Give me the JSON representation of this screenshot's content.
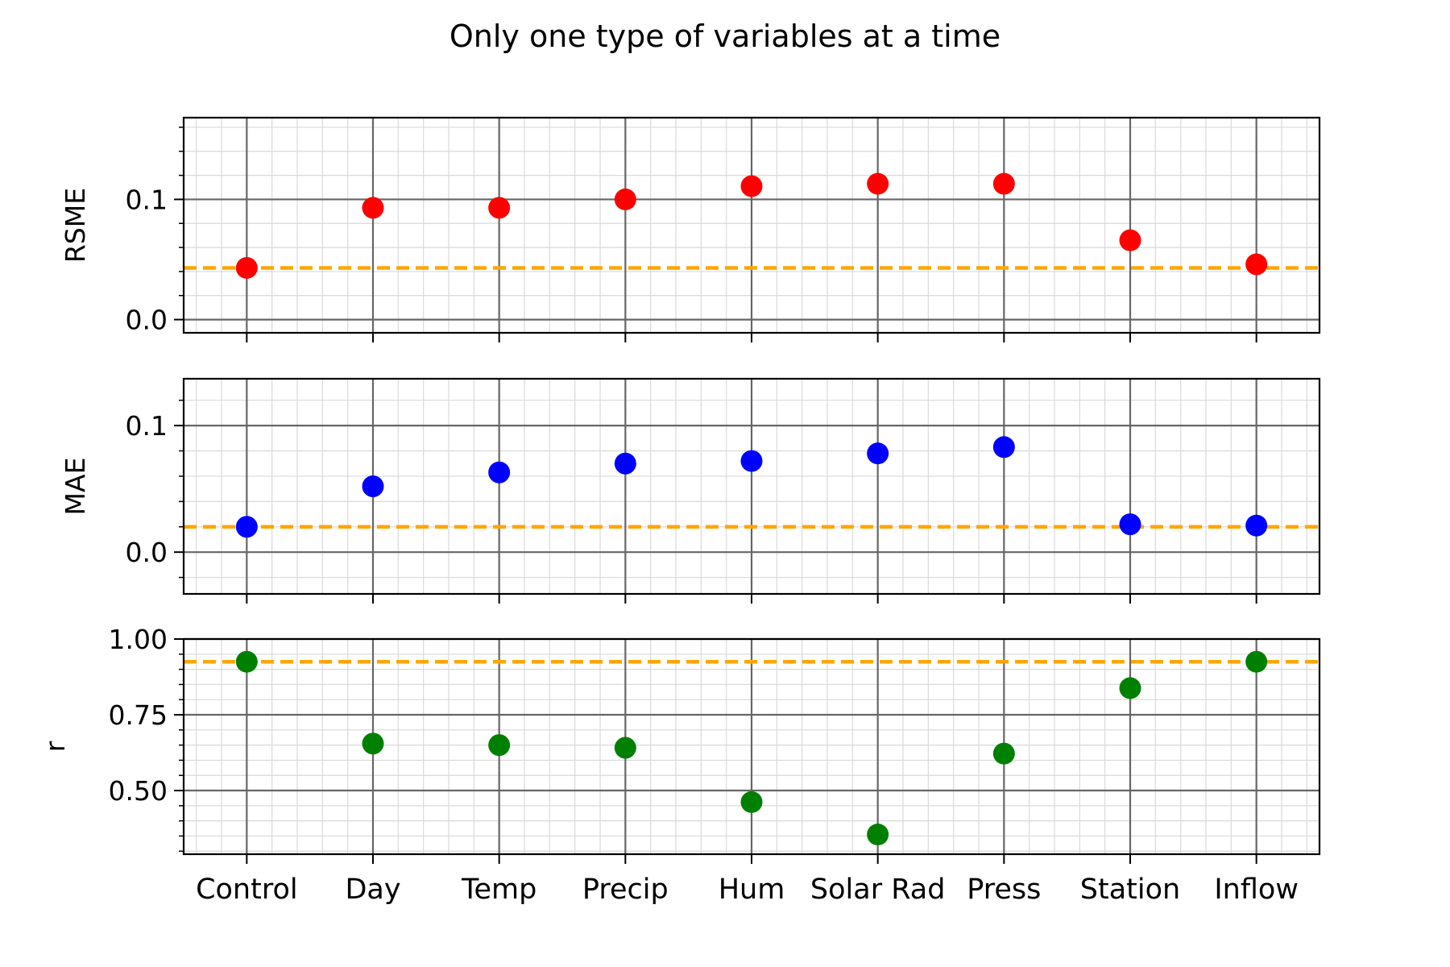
{
  "chart_data": {
    "title": "Only one type of variables at a time",
    "type": "scatter",
    "categories": [
      "Control",
      "Day",
      "Temp",
      "Precip",
      "Hum",
      "Solar Rad",
      "Press",
      "Station",
      "Inflow"
    ],
    "grid": true,
    "reference_line_color": "#ffa500",
    "panels": [
      {
        "ylabel": "RSME",
        "color": "#ff0000",
        "values": [
          0.043,
          0.093,
          0.093,
          0.1,
          0.111,
          0.113,
          0.113,
          0.066,
          0.046
        ],
        "reference": 0.043,
        "ylim": [
          -0.011,
          0.168
        ],
        "yticks": [
          0.0,
          0.1
        ],
        "ytick_labels": [
          "0.0",
          "0.1"
        ]
      },
      {
        "ylabel": "MAE",
        "color": "#0000ff",
        "values": [
          0.02,
          0.052,
          0.063,
          0.07,
          0.072,
          0.078,
          0.083,
          0.022,
          0.021
        ],
        "reference": 0.02,
        "ylim": [
          -0.033,
          0.137
        ],
        "yticks": [
          0.0,
          0.1
        ],
        "ytick_labels": [
          "0.0",
          "0.1"
        ]
      },
      {
        "ylabel": "r",
        "color": "#008000",
        "values": [
          0.925,
          0.655,
          0.65,
          0.641,
          0.462,
          0.355,
          0.622,
          0.838,
          0.925
        ],
        "reference": 0.925,
        "ylim": [
          0.29,
          1.0
        ],
        "yticks": [
          0.5,
          0.75,
          1.0
        ],
        "ytick_labels": [
          "0.50",
          "0.75",
          "1.00"
        ]
      }
    ]
  }
}
